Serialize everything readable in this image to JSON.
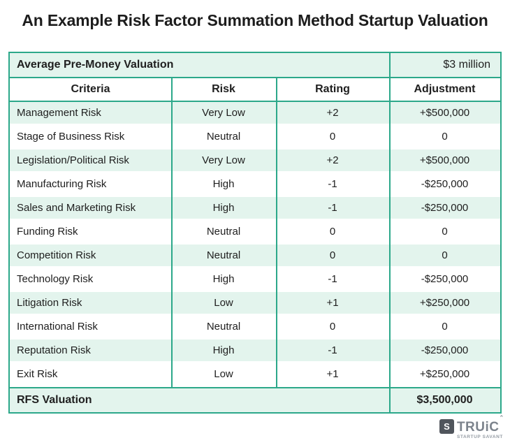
{
  "title": "An Example Risk Factor Summation Method Startup Valuation",
  "colors": {
    "accent_teal": "#2CA88A",
    "row_green": "#E3F4ED",
    "header_bg": "#FFFFFF",
    "text_dark": "#202020"
  },
  "table": {
    "pre_money": {
      "label": "Average Pre-Money Valuation",
      "value": "$3 million"
    },
    "columns": [
      "Criteria",
      "Risk",
      "Rating",
      "Adjustment"
    ],
    "rows": [
      {
        "criteria": "Management Risk",
        "risk": "Very Low",
        "rating": "+2",
        "adjustment": "+$500,000"
      },
      {
        "criteria": "Stage of Business Risk",
        "risk": "Neutral",
        "rating": "0",
        "adjustment": "0"
      },
      {
        "criteria": "Legislation/Political Risk",
        "risk": "Very Low",
        "rating": "+2",
        "adjustment": "+$500,000"
      },
      {
        "criteria": "Manufacturing Risk",
        "risk": "High",
        "rating": "-1",
        "adjustment": "-$250,000"
      },
      {
        "criteria": "Sales and Marketing Risk",
        "risk": "High",
        "rating": "-1",
        "adjustment": "-$250,000"
      },
      {
        "criteria": "Funding Risk",
        "risk": "Neutral",
        "rating": "0",
        "adjustment": "0"
      },
      {
        "criteria": "Competition Risk",
        "risk": "Neutral",
        "rating": "0",
        "adjustment": "0"
      },
      {
        "criteria": "Technology Risk",
        "risk": "High",
        "rating": "-1",
        "adjustment": "-$250,000"
      },
      {
        "criteria": "Litigation Risk",
        "risk": "Low",
        "rating": "+1",
        "adjustment": "+$250,000"
      },
      {
        "criteria": "International Risk",
        "risk": "Neutral",
        "rating": "0",
        "adjustment": "0"
      },
      {
        "criteria": "Reputation Risk",
        "risk": "High",
        "rating": "-1",
        "adjustment": "-$250,000"
      },
      {
        "criteria": "Exit Risk",
        "risk": "Low",
        "rating": "+1",
        "adjustment": "+$250,000"
      }
    ],
    "footer": {
      "label": "RFS Valuation",
      "value": "$3,500,000"
    }
  },
  "logo": {
    "mark": "S",
    "name": "TRUiC",
    "caret": "ˆ",
    "tagline": "STARTUP SAVANT"
  },
  "chart_data": {
    "type": "table",
    "title": "An Example Risk Factor Summation Method Startup Valuation",
    "average_pre_money_valuation": "$3 million",
    "columns": [
      "Criteria",
      "Risk",
      "Rating",
      "Adjustment"
    ],
    "rows": [
      [
        "Management Risk",
        "Very Low",
        "+2",
        "+$500,000"
      ],
      [
        "Stage of Business Risk",
        "Neutral",
        "0",
        "0"
      ],
      [
        "Legislation/Political Risk",
        "Very Low",
        "+2",
        "+$500,000"
      ],
      [
        "Manufacturing Risk",
        "High",
        "-1",
        "-$250,000"
      ],
      [
        "Sales and Marketing Risk",
        "High",
        "-1",
        "-$250,000"
      ],
      [
        "Funding Risk",
        "Neutral",
        "0",
        "0"
      ],
      [
        "Competition Risk",
        "Neutral",
        "0",
        "0"
      ],
      [
        "Technology Risk",
        "High",
        "-1",
        "-$250,000"
      ],
      [
        "Litigation Risk",
        "Low",
        "+1",
        "+$250,000"
      ],
      [
        "International Risk",
        "Neutral",
        "0",
        "0"
      ],
      [
        "Reputation Risk",
        "High",
        "-1",
        "-$250,000"
      ],
      [
        "Exit Risk",
        "Low",
        "+1",
        "+$250,000"
      ]
    ],
    "rfs_valuation": "$3,500,000"
  }
}
